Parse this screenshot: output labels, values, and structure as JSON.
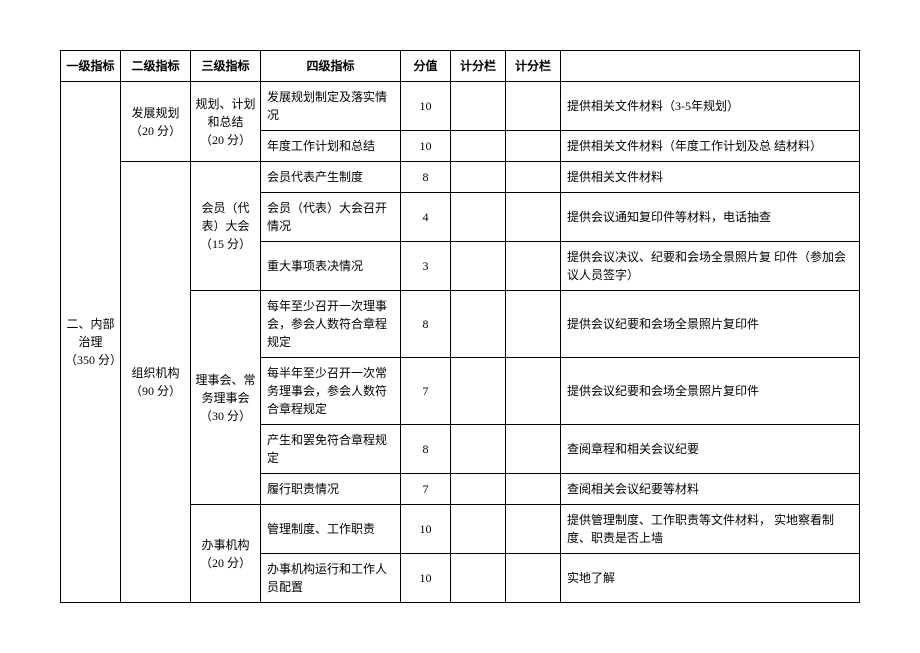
{
  "headers": {
    "level1": "一级指标",
    "level2": "二级指标",
    "level3": "三级指标",
    "level4": "四级指标",
    "score": "分值",
    "scoring1": "计分栏",
    "scoring2": "计分栏"
  },
  "level1": {
    "title": "二、内部治理 （350 分）"
  },
  "level2_plan": {
    "title": "发展规划 （20 分）"
  },
  "level2_org": {
    "title": "组织机构 （90 分）"
  },
  "level3_plan": {
    "title": "规划、计划和总结 （20 分）"
  },
  "level3_member": {
    "title": "会员（代表）大会 （15 分）"
  },
  "level3_council": {
    "title": "理事会、常务理事会 （30 分）"
  },
  "level3_office": {
    "title": "办事机构 （20 分）"
  },
  "rows": {
    "r1": {
      "l4": "发展规划制定及落实情  况",
      "score": "10",
      "note": "提供相关文件材料（3-5年规划）"
    },
    "r2": {
      "l4": "年度工作计划和总结",
      "score": "10",
      "note": "提供相关文件材料（年度工作计划及总  结材料）"
    },
    "r3": {
      "l4": "会员代表产生制度",
      "score": "8",
      "note": "提供相关文件材料"
    },
    "r4": {
      "l4": "会员（代表）大会召开  情况",
      "score": "4",
      "note": "提供会议通知复印件等材料，电话抽查"
    },
    "r5": {
      "l4": "重大事项表决情况",
      "score": "3",
      "note": "提供会议决议、纪要和会场全景照片复  印件（参加会议人员签字）"
    },
    "r6": {
      "l4": "每年至少召开一次理事  会，参会人数符合章程  规定",
      "score": "8",
      "note": "提供会议纪要和会场全景照片复印件"
    },
    "r7": {
      "l4": "每半年至少召开一次常  务理事会，参会人数符  合章程规定",
      "score": "7",
      "note": "提供会议纪要和会场全景照片复印件"
    },
    "r8": {
      "l4": "产生和罢免符合章程规  定",
      "score": "8",
      "note": "查阅章程和相关会议纪要"
    },
    "r9": {
      "l4": "履行职责情况",
      "score": "7",
      "note": "查阅相关会议纪要等材料"
    },
    "r10": {
      "l4": "管理制度、工作职责",
      "score": "10",
      "note": "提供管理制度、工作职责等文件材料，  实地察看制度、职责是否上墙"
    },
    "r11": {
      "l4": "办事机构运行和工作人  员配置",
      "score": "10",
      "note": "实地了解"
    }
  }
}
